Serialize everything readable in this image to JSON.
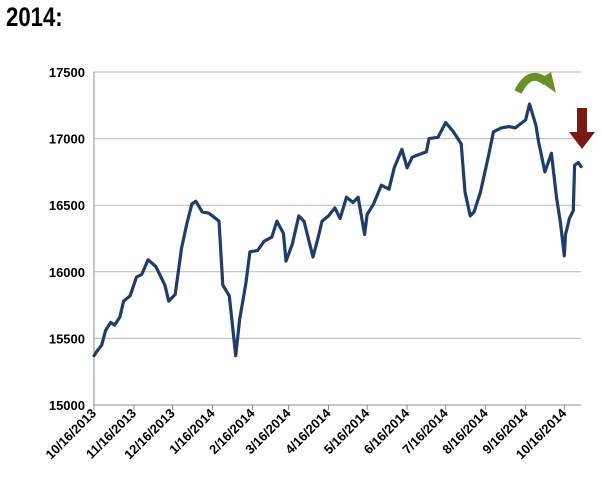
{
  "heading": "2014:",
  "chart_data": {
    "type": "line",
    "title": "",
    "xlabel": "",
    "ylabel": "",
    "ylim": [
      15000,
      17500
    ],
    "yticks": [
      15000,
      15500,
      16000,
      16500,
      17000,
      17500
    ],
    "xticks": [
      "10/16/2013",
      "11/16/2013",
      "12/16/2013",
      "1/16/2014",
      "2/16/2014",
      "3/16/2014",
      "4/16/2014",
      "5/16/2014",
      "6/16/2014",
      "7/16/2014",
      "8/16/2014",
      "9/16/2014",
      "10/16/2014"
    ],
    "grid": "horizontal",
    "legend": "none",
    "line_color": "#1f3d6b",
    "series": [
      {
        "x": [
          "10/16/2013",
          "10/18/2013",
          "10/22/2013",
          "10/25/2013",
          "10/29/2013",
          "11/1/2013",
          "11/5/2013",
          "11/8/2013",
          "11/13/2013",
          "11/18/2013",
          "11/22/2013",
          "11/27/2013",
          "12/3/2013",
          "12/6/2013",
          "12/10/2013",
          "12/13/2013",
          "12/18/2013",
          "12/23/2013",
          "12/27/2013",
          "12/31/2013",
          "1/3/2014",
          "1/8/2014",
          "1/13/2014",
          "1/16/2014",
          "1/21/2014",
          "1/24/2014",
          "1/29/2014",
          "2/3/2014",
          "2/6/2014",
          "2/11/2014",
          "2/14/2014",
          "2/20/2014",
          "2/25/2014",
          "3/3/2014",
          "3/7/2014",
          "3/12/2014",
          "3/14/2014",
          "3/19/2014",
          "3/24/2014",
          "3/28/2014",
          "4/4/2014",
          "4/8/2014",
          "4/11/2014",
          "4/16/2014",
          "4/21/2014",
          "4/25/2014",
          "4/30/2014",
          "5/5/2014",
          "5/9/2014",
          "5/14/2014",
          "5/16/2014",
          "5/21/2014",
          "5/27/2014",
          "6/2/2014",
          "6/6/2014",
          "6/12/2014",
          "6/16/2014",
          "6/20/2014",
          "6/25/2014",
          "7/1/2014",
          "7/3/2014",
          "7/10/2014",
          "7/16/2014",
          "7/22/2014",
          "7/28/2014",
          "7/31/2014",
          "8/4/2014",
          "8/7/2014",
          "8/12/2014",
          "8/18/2014",
          "8/22/2014",
          "8/28/2014",
          "9/3/2014",
          "9/8/2014",
          "9/12/2014",
          "9/16/2014",
          "9/19/2014",
          "9/24/2014",
          "9/26/2014",
          "10/1/2014",
          "10/6/2014",
          "10/10/2014",
          "10/13/2014",
          "10/16/2014",
          "10/17/2014",
          "10/20/2014",
          "10/23/2014",
          "10/24/2014",
          "10/27/2014",
          "10/29/2014"
        ],
        "y": [
          15370,
          15400,
          15450,
          15560,
          15620,
          15600,
          15660,
          15780,
          15820,
          15960,
          15980,
          16090,
          16040,
          15980,
          15900,
          15780,
          15830,
          16180,
          16360,
          16510,
          16530,
          16450,
          16440,
          16420,
          16380,
          15900,
          15820,
          15370,
          15640,
          15920,
          16150,
          16160,
          16230,
          16260,
          16380,
          16290,
          16080,
          16210,
          16420,
          16380,
          16110,
          16260,
          16380,
          16420,
          16480,
          16400,
          16560,
          16520,
          16560,
          16280,
          16430,
          16510,
          16650,
          16620,
          16780,
          16920,
          16780,
          16860,
          16880,
          16900,
          17000,
          17010,
          17120,
          17050,
          16960,
          16600,
          16420,
          16450,
          16600,
          16860,
          17050,
          17080,
          17090,
          17080,
          17110,
          17140,
          17260,
          17100,
          16980,
          16750,
          16890,
          16560,
          16370,
          16120,
          16280,
          16400,
          16460,
          16800,
          16820,
          16790
        ]
      }
    ],
    "annotations": [
      "curved-arrow-green",
      "down-arrow-dark-red"
    ]
  }
}
